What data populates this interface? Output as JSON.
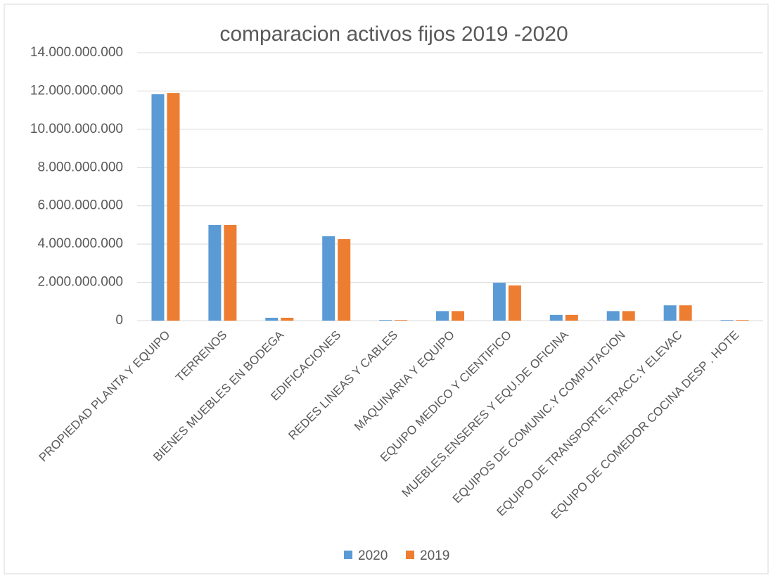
{
  "chart_data": {
    "type": "bar",
    "title": "comparacion activos fijos 2019 -2020",
    "categories": [
      "PROPIEDAD PLANTA Y EQUIPO",
      "TERRENOS",
      "BIENES MUEBLES EN BODEGA",
      "EDIFICACIONES",
      "REDES LINEAS Y CABLES",
      "MAQUINARIA Y EQUIPO",
      "EQUIPO MEDICO Y CIENTIFICO",
      "MUEBLES,ENSERES Y EQU.DE OFICINA",
      "EQUIPOS DE COMUNIC.Y COMPUTACION",
      "EQUIPO DE TRANSPORTE,TRACC.Y ELEVAC",
      "EQUIPO DE COMEDOR COCINA DESP . HOTE"
    ],
    "series": [
      {
        "name": "2020",
        "color": "#5b9bd5",
        "values": [
          11830000000,
          5000000000,
          150000000,
          4410000000,
          30000000,
          500000000,
          1980000000,
          300000000,
          500000000,
          800000000,
          30000000
        ]
      },
      {
        "name": "2019",
        "color": "#ed7d31",
        "values": [
          11900000000,
          5000000000,
          150000000,
          4260000000,
          30000000,
          500000000,
          1840000000,
          300000000,
          500000000,
          800000000,
          30000000
        ]
      }
    ],
    "ylim": [
      0,
      14000000000
    ],
    "yticks": [
      0,
      {
        "value": 2000000000,
        "label": "2.000.000.000"
      },
      {
        "value": 4000000000,
        "label": "4.000.000.000"
      },
      {
        "value": 6000000000,
        "label": "6.000.000.000"
      },
      {
        "value": 8000000000,
        "label": "8.000.000.000"
      },
      {
        "value": 10000000000,
        "label": "10.000.000.000"
      },
      {
        "value": 12000000000,
        "label": "12.000.000.000"
      },
      {
        "value": 14000000000,
        "label": "14.000.000.000"
      }
    ],
    "grid": true,
    "legend": "bottom"
  }
}
